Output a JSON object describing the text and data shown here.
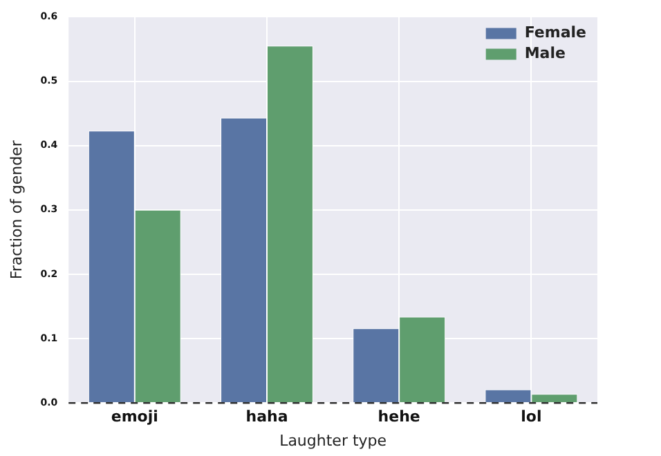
{
  "chart_data": {
    "type": "bar",
    "xlabel": "Laughter type",
    "ylabel": "Fraction of gender",
    "categories": [
      "emoji",
      "haha",
      "hehe",
      "lol"
    ],
    "series": [
      {
        "name": "Female",
        "color": "#5975a4",
        "values": [
          0.423,
          0.443,
          0.116,
          0.021
        ]
      },
      {
        "name": "Male",
        "color": "#5f9e6e",
        "values": [
          0.3,
          0.555,
          0.134,
          0.014
        ]
      }
    ],
    "ylim": [
      0,
      0.6
    ],
    "yticks": [
      {
        "value": 0,
        "label": "0.0"
      },
      0.1,
      0.2,
      0.3,
      0.4,
      0.5,
      0.6
    ],
    "grid": true,
    "legend": "top right",
    "ref_lines": [
      {
        "axis": "y",
        "value": 0,
        "color": "#333333",
        "line_style": "dashed"
      }
    ]
  }
}
